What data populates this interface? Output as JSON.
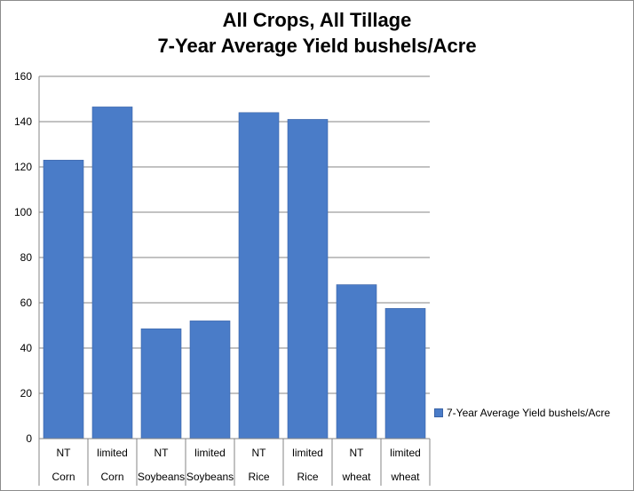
{
  "chart_data": {
    "type": "bar",
    "title": [
      "All Crops, All Tillage",
      "7-Year Average Yield bushels/Acre"
    ],
    "categories": [
      [
        "NT",
        "Corn"
      ],
      [
        "limited",
        "Corn"
      ],
      [
        "NT",
        "Soybeans"
      ],
      [
        "limited",
        "Soybeans"
      ],
      [
        "NT",
        "Rice"
      ],
      [
        "limited",
        "Rice"
      ],
      [
        "NT",
        "wheat"
      ],
      [
        "limited",
        "wheat"
      ]
    ],
    "series": [
      {
        "name": "7-Year Average Yield bushels/Acre",
        "values": [
          123,
          146.5,
          48.5,
          52,
          144,
          141,
          68,
          57.5
        ]
      }
    ],
    "yticks": [
      "0",
      "20",
      "40",
      "60",
      "80",
      "100",
      "120",
      "140",
      "160"
    ],
    "ylim": [
      0,
      160
    ],
    "grid": true,
    "legend_position": "right",
    "bar_color": "#4a7cc8"
  }
}
